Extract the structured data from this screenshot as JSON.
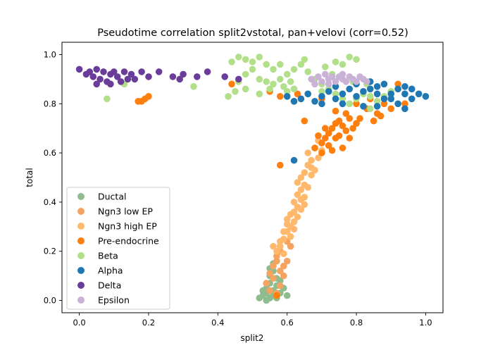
{
  "chart_data": {
    "type": "scatter",
    "title": "Pseudotime correlation split2vstotal, pan+velovi (corr=0.52)",
    "xlabel": "split2",
    "ylabel": "total",
    "xlim": [
      -0.05,
      1.05
    ],
    "ylim": [
      -0.05,
      1.05
    ],
    "xticks": [
      0.0,
      0.2,
      0.4,
      0.6,
      0.8,
      1.0
    ],
    "xtick_labels": [
      "0.0",
      "0.2",
      "0.4",
      "0.6",
      "0.8",
      "1.0"
    ],
    "yticks": [
      0.0,
      0.2,
      0.4,
      0.6,
      0.8,
      1.0
    ],
    "ytick_labels": [
      "0.0",
      "0.2",
      "0.4",
      "0.6",
      "0.8",
      "1.0"
    ],
    "grid": false,
    "legend_position": "lower-left",
    "series": [
      {
        "name": "Ductal",
        "color": "#8fbc8f",
        "points": [
          [
            0.52,
            0.01
          ],
          [
            0.53,
            0.02
          ],
          [
            0.54,
            0.03
          ],
          [
            0.55,
            0.01
          ],
          [
            0.56,
            0.04
          ],
          [
            0.57,
            0.06
          ],
          [
            0.55,
            0.07
          ],
          [
            0.54,
            0.05
          ],
          [
            0.56,
            0.02
          ],
          [
            0.58,
            0.03
          ],
          [
            0.57,
            0.09
          ],
          [
            0.55,
            0.1
          ],
          [
            0.53,
            0.04
          ],
          [
            0.59,
            0.05
          ],
          [
            0.56,
            0.12
          ],
          [
            0.58,
            0.08
          ],
          [
            0.54,
            0.0
          ],
          [
            0.57,
            0.01
          ],
          [
            0.6,
            0.02
          ],
          [
            0.55,
            0.13
          ],
          [
            0.56,
            0.15
          ]
        ]
      },
      {
        "name": "Ngn3 low EP",
        "color": "#f4a460",
        "points": [
          [
            0.55,
            0.11
          ],
          [
            0.56,
            0.14
          ],
          [
            0.57,
            0.18
          ],
          [
            0.58,
            0.12
          ],
          [
            0.56,
            0.09
          ],
          [
            0.59,
            0.1
          ],
          [
            0.6,
            0.16
          ],
          [
            0.58,
            0.2
          ],
          [
            0.57,
            0.16
          ],
          [
            0.54,
            0.07
          ],
          [
            0.59,
            0.14
          ],
          [
            0.61,
            0.22
          ],
          [
            0.6,
            0.24
          ],
          [
            0.55,
            0.04
          ],
          [
            0.58,
            0.06
          ],
          [
            0.57,
            0.03
          ]
        ]
      },
      {
        "name": "Ngn3 high EP",
        "color": "#ffb86c",
        "points": [
          [
            0.57,
            0.2
          ],
          [
            0.58,
            0.22
          ],
          [
            0.59,
            0.25
          ],
          [
            0.6,
            0.28
          ],
          [
            0.61,
            0.3
          ],
          [
            0.6,
            0.33
          ],
          [
            0.62,
            0.36
          ],
          [
            0.63,
            0.38
          ],
          [
            0.62,
            0.4
          ],
          [
            0.63,
            0.43
          ],
          [
            0.64,
            0.45
          ],
          [
            0.65,
            0.47
          ],
          [
            0.64,
            0.5
          ],
          [
            0.65,
            0.52
          ],
          [
            0.66,
            0.55
          ],
          [
            0.67,
            0.57
          ],
          [
            0.66,
            0.6
          ],
          [
            0.68,
            0.62
          ],
          [
            0.59,
            0.19
          ],
          [
            0.61,
            0.26
          ],
          [
            0.62,
            0.32
          ],
          [
            0.61,
            0.35
          ],
          [
            0.64,
            0.41
          ],
          [
            0.65,
            0.42
          ],
          [
            0.63,
            0.48
          ],
          [
            0.67,
            0.51
          ],
          [
            0.67,
            0.54
          ],
          [
            0.69,
            0.58
          ],
          [
            0.7,
            0.61
          ],
          [
            0.58,
            0.24
          ],
          [
            0.6,
            0.31
          ],
          [
            0.62,
            0.29
          ],
          [
            0.64,
            0.37
          ],
          [
            0.66,
            0.46
          ],
          [
            0.68,
            0.53
          ],
          [
            0.69,
            0.65
          ],
          [
            0.59,
            0.28
          ],
          [
            0.56,
            0.22
          ],
          [
            0.63,
            0.34
          ],
          [
            0.65,
            0.39
          ]
        ]
      },
      {
        "name": "Pre-endocrine",
        "color": "#ff7f0e",
        "points": [
          [
            0.68,
            0.62
          ],
          [
            0.7,
            0.64
          ],
          [
            0.71,
            0.66
          ],
          [
            0.72,
            0.68
          ],
          [
            0.73,
            0.7
          ],
          [
            0.74,
            0.72
          ],
          [
            0.75,
            0.73
          ],
          [
            0.76,
            0.71
          ],
          [
            0.74,
            0.66
          ],
          [
            0.72,
            0.63
          ],
          [
            0.7,
            0.6
          ],
          [
            0.77,
            0.69
          ],
          [
            0.78,
            0.74
          ],
          [
            0.79,
            0.7
          ],
          [
            0.73,
            0.61
          ],
          [
            0.71,
            0.7
          ],
          [
            0.69,
            0.67
          ],
          [
            0.75,
            0.67
          ],
          [
            0.76,
            0.62
          ],
          [
            0.78,
            0.66
          ],
          [
            0.8,
            0.72
          ],
          [
            0.77,
            0.76
          ],
          [
            0.74,
            0.77
          ],
          [
            0.65,
            0.73
          ],
          [
            0.8,
            0.8
          ],
          [
            0.83,
            0.78
          ],
          [
            0.86,
            0.76
          ],
          [
            0.88,
            0.8
          ],
          [
            0.9,
            0.78
          ],
          [
            0.84,
            0.82
          ],
          [
            0.94,
            0.8
          ],
          [
            0.92,
            0.88
          ],
          [
            0.63,
            0.84
          ],
          [
            0.62,
            0.81
          ],
          [
            0.7,
            0.82
          ],
          [
            0.18,
            0.81
          ],
          [
            0.17,
            0.81
          ],
          [
            0.19,
            0.82
          ],
          [
            0.2,
            0.83
          ],
          [
            0.44,
            0.88
          ],
          [
            0.55,
            0.85
          ],
          [
            0.58,
            0.83
          ],
          [
            0.81,
            0.74
          ],
          [
            0.85,
            0.73
          ],
          [
            0.87,
            0.75
          ],
          [
            0.58,
            0.55
          ],
          [
            0.57,
            0.02
          ]
        ]
      },
      {
        "name": "Beta",
        "color": "#b2df8a",
        "points": [
          [
            0.44,
            0.97
          ],
          [
            0.46,
            0.99
          ],
          [
            0.48,
            0.98
          ],
          [
            0.5,
            0.97
          ],
          [
            0.52,
            0.99
          ],
          [
            0.54,
            0.96
          ],
          [
            0.56,
            0.94
          ],
          [
            0.58,
            0.96
          ],
          [
            0.5,
            0.94
          ],
          [
            0.48,
            0.92
          ],
          [
            0.52,
            0.9
          ],
          [
            0.54,
            0.89
          ],
          [
            0.56,
            0.88
          ],
          [
            0.58,
            0.9
          ],
          [
            0.6,
            0.92
          ],
          [
            0.62,
            0.94
          ],
          [
            0.64,
            0.96
          ],
          [
            0.66,
            0.93
          ],
          [
            0.68,
            0.9
          ],
          [
            0.7,
            0.88
          ],
          [
            0.72,
            0.86
          ],
          [
            0.74,
            0.84
          ],
          [
            0.76,
            0.82
          ],
          [
            0.78,
            0.8
          ],
          [
            0.8,
            0.82
          ],
          [
            0.82,
            0.84
          ],
          [
            0.84,
            0.83
          ],
          [
            0.86,
            0.81
          ],
          [
            0.88,
            0.83
          ],
          [
            0.9,
            0.85
          ],
          [
            0.78,
            0.99
          ],
          [
            0.8,
            0.98
          ],
          [
            0.74,
            0.97
          ],
          [
            0.65,
            0.98
          ],
          [
            0.76,
            0.96
          ],
          [
            0.52,
            0.84
          ],
          [
            0.55,
            0.86
          ],
          [
            0.62,
            0.86
          ],
          [
            0.66,
            0.84
          ],
          [
            0.7,
            0.85
          ],
          [
            0.45,
            0.85
          ],
          [
            0.43,
            0.83
          ],
          [
            0.48,
            0.86
          ],
          [
            0.46,
            0.89
          ],
          [
            0.6,
            0.85
          ],
          [
            0.84,
            0.78
          ],
          [
            0.08,
            0.82
          ],
          [
            0.13,
            0.88
          ],
          [
            0.33,
            0.87
          ],
          [
            0.59,
            0.87
          ],
          [
            0.61,
            0.89
          ],
          [
            0.71,
            0.95
          ],
          [
            0.73,
            0.92
          ],
          [
            0.79,
            0.89
          ],
          [
            0.83,
            0.88
          ]
        ]
      },
      {
        "name": "Alpha",
        "color": "#1f77b4",
        "points": [
          [
            0.6,
            0.83
          ],
          [
            0.62,
            0.81
          ],
          [
            0.64,
            0.82
          ],
          [
            0.66,
            0.84
          ],
          [
            0.68,
            0.81
          ],
          [
            0.7,
            0.83
          ],
          [
            0.72,
            0.85
          ],
          [
            0.74,
            0.82
          ],
          [
            0.76,
            0.84
          ],
          [
            0.78,
            0.86
          ],
          [
            0.8,
            0.83
          ],
          [
            0.82,
            0.85
          ],
          [
            0.84,
            0.86
          ],
          [
            0.86,
            0.84
          ],
          [
            0.88,
            0.82
          ],
          [
            0.9,
            0.84
          ],
          [
            0.92,
            0.86
          ],
          [
            0.94,
            0.84
          ],
          [
            0.96,
            0.82
          ],
          [
            0.98,
            0.84
          ],
          [
            1.0,
            0.83
          ],
          [
            0.88,
            0.88
          ],
          [
            0.84,
            0.89
          ],
          [
            0.8,
            0.88
          ],
          [
            0.76,
            0.8
          ],
          [
            0.7,
            0.8
          ],
          [
            0.82,
            0.79
          ],
          [
            0.86,
            0.79
          ],
          [
            0.92,
            0.8
          ],
          [
            0.94,
            0.78
          ],
          [
            0.62,
            0.57
          ],
          [
            0.96,
            0.86
          ],
          [
            0.9,
            0.82
          ],
          [
            0.74,
            0.87
          ],
          [
            0.86,
            0.87
          ],
          [
            0.94,
            0.87
          ]
        ]
      },
      {
        "name": "Delta",
        "color": "#6a3d9a",
        "points": [
          [
            0.0,
            0.94
          ],
          [
            0.02,
            0.92
          ],
          [
            0.03,
            0.93
          ],
          [
            0.04,
            0.91
          ],
          [
            0.05,
            0.94
          ],
          [
            0.06,
            0.9
          ],
          [
            0.07,
            0.93
          ],
          [
            0.08,
            0.89
          ],
          [
            0.09,
            0.92
          ],
          [
            0.1,
            0.93
          ],
          [
            0.11,
            0.91
          ],
          [
            0.12,
            0.89
          ],
          [
            0.13,
            0.93
          ],
          [
            0.15,
            0.92
          ],
          [
            0.16,
            0.9
          ],
          [
            0.18,
            0.93
          ],
          [
            0.2,
            0.91
          ],
          [
            0.23,
            0.93
          ],
          [
            0.27,
            0.91
          ],
          [
            0.29,
            0.9
          ],
          [
            0.3,
            0.92
          ],
          [
            0.34,
            0.91
          ],
          [
            0.37,
            0.93
          ],
          [
            0.42,
            0.91
          ],
          [
            0.46,
            0.9
          ],
          [
            0.09,
            0.88
          ],
          [
            0.05,
            0.88
          ],
          [
            0.14,
            0.9
          ]
        ]
      },
      {
        "name": "Epsilon",
        "color": "#cab2d6",
        "points": [
          [
            0.67,
            0.9
          ],
          [
            0.69,
            0.91
          ],
          [
            0.71,
            0.92
          ],
          [
            0.72,
            0.9
          ],
          [
            0.73,
            0.91
          ],
          [
            0.74,
            0.89
          ],
          [
            0.75,
            0.91
          ],
          [
            0.76,
            0.9
          ],
          [
            0.77,
            0.89
          ],
          [
            0.78,
            0.91
          ],
          [
            0.79,
            0.9
          ],
          [
            0.8,
            0.89
          ],
          [
            0.81,
            0.91
          ],
          [
            0.82,
            0.9
          ],
          [
            0.7,
            0.89
          ],
          [
            0.68,
            0.88
          ],
          [
            0.83,
            0.89
          ],
          [
            0.72,
            0.88
          ],
          [
            0.76,
            0.92
          ]
        ]
      }
    ]
  }
}
